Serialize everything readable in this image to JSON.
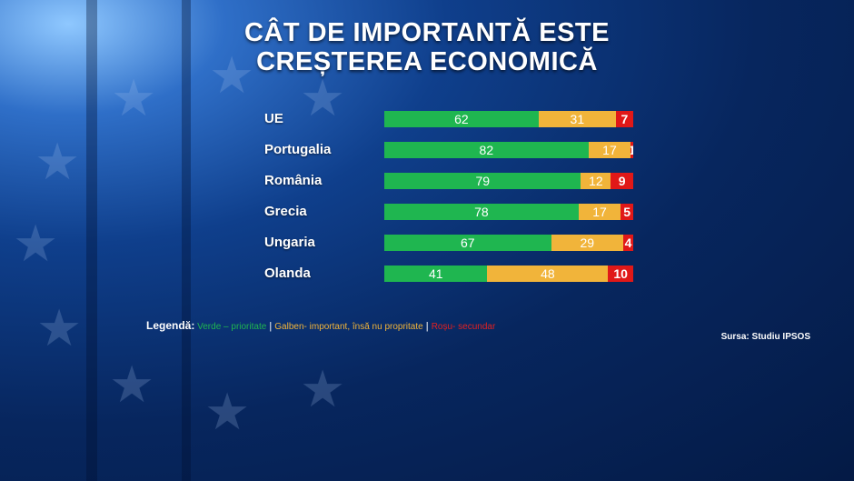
{
  "title_line1": "CÂT DE IMPORTANTĂ ESTE",
  "title_line2": "CREȘTEREA ECONOMICĂ",
  "colors": {
    "green": "#1fb650",
    "yellow": "#f1b43a",
    "red": "#e01818"
  },
  "chart_data": {
    "type": "bar",
    "orientation": "horizontal",
    "stacked": true,
    "categories": [
      "UE",
      "Portugalia",
      "România",
      "Grecia",
      "Ungaria",
      "Olanda"
    ],
    "series": [
      {
        "name": "Verde – prioritate",
        "color": "#1fb650",
        "values": [
          62,
          82,
          79,
          78,
          67,
          41
        ]
      },
      {
        "name": "Galben- important, însă nu propritate",
        "color": "#f1b43a",
        "values": [
          31,
          17,
          12,
          17,
          29,
          48
        ]
      },
      {
        "name": "Roșu- secundar",
        "color": "#e01818",
        "values": [
          7,
          1,
          9,
          5,
          4,
          10
        ]
      }
    ],
    "legend_position": "bottom-left"
  },
  "legend": {
    "label": "Legendă:",
    "green": "Verde – prioritate",
    "yellow": "Galben- important, însă nu propritate",
    "red": "Roșu- secundar",
    "separator": " | "
  },
  "source": "Sursa: Studiu IPSOS"
}
